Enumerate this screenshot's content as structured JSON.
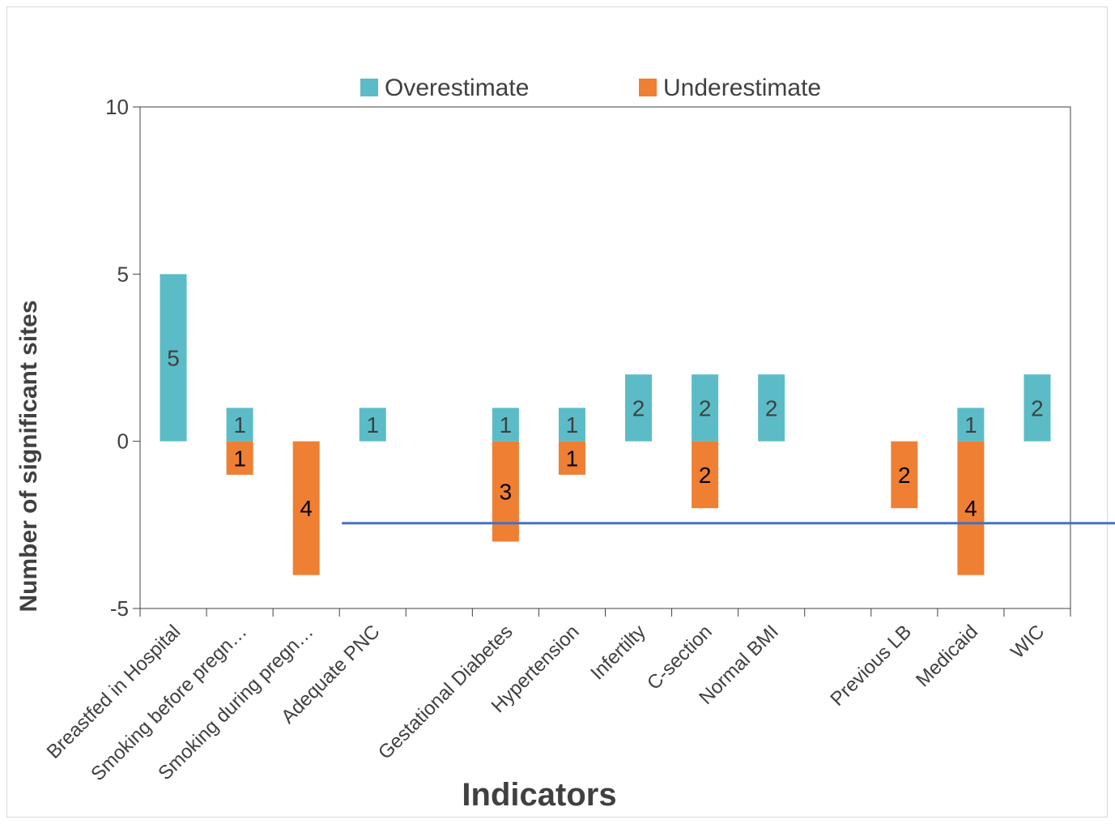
{
  "chart_data": {
    "type": "bar",
    "stacked": true,
    "title": "",
    "xlabel": "Indicators",
    "ylabel": "Number of significant sites",
    "ylim": [
      -5,
      10
    ],
    "yticks": [
      10,
      5,
      0,
      -5
    ],
    "grid": false,
    "legend_position": "top",
    "categories": [
      "Breastfed in Hospital",
      "Smoking before pregn…",
      "Smoking during pregn…",
      "Adequate PNC",
      "",
      "Gestational Diabetes",
      "Hypertension",
      "Infertilty",
      "C-section",
      "Normal BMI",
      "",
      "Previous LB",
      "Medicaid",
      "WIC"
    ],
    "series": [
      {
        "name": "Overestimate",
        "color": "#5bbcc8",
        "label_color": "#404040",
        "values": [
          5,
          1,
          0,
          1,
          0,
          1,
          1,
          2,
          2,
          2,
          0,
          0,
          1,
          2
        ],
        "labels": [
          "5",
          "1",
          "",
          "1",
          "",
          "1",
          "1",
          "2",
          "2",
          "2",
          "",
          "",
          "1",
          "2"
        ]
      },
      {
        "name": "Underestimate",
        "color": "#ef7f33",
        "label_color": "#000000",
        "values": [
          0,
          -1,
          -4,
          0,
          0,
          -3,
          -1,
          0,
          -2,
          0,
          0,
          -2,
          -4,
          0
        ],
        "labels": [
          "",
          "1",
          "4",
          "",
          "",
          "3",
          "1",
          "",
          "2",
          "",
          "",
          "2",
          "4",
          ""
        ]
      }
    ],
    "reference_line": {
      "y": -2.45,
      "x_start_category": 3,
      "color": "#4472c4"
    }
  }
}
